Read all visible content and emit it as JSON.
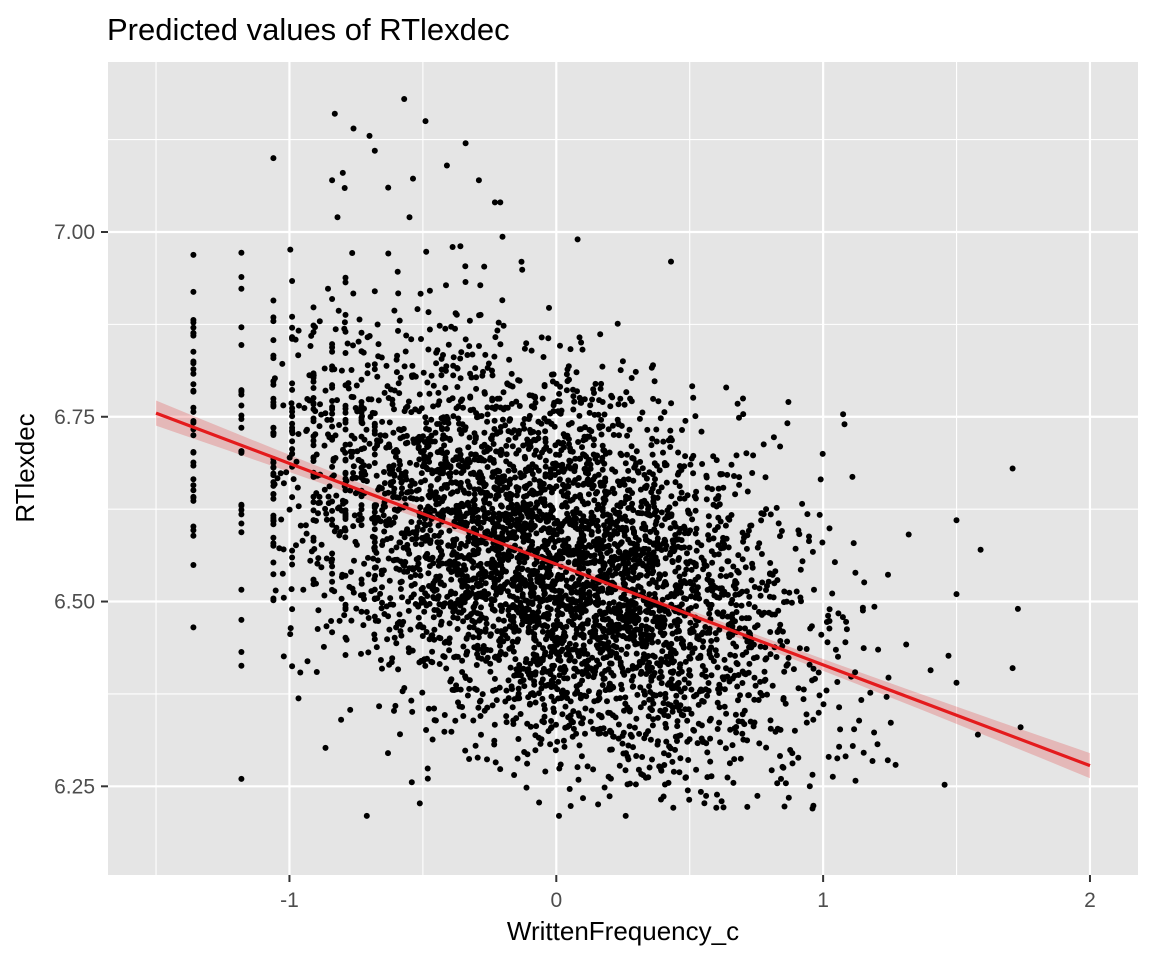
{
  "chart_data": {
    "type": "scatter",
    "title": "Predicted values of RTlexdec",
    "xlabel": "WrittenFrequency_c",
    "ylabel": "RTlexdec",
    "xlim": [
      -1.68,
      2.18
    ],
    "ylim": [
      6.13,
      7.23
    ],
    "x_ticks": [
      -1,
      0,
      1,
      2
    ],
    "x_tick_labels": [
      "-1",
      "0",
      "1",
      "2"
    ],
    "y_ticks": [
      6.25,
      6.5,
      6.75,
      7.0
    ],
    "y_tick_labels": [
      "6.25",
      "6.50",
      "6.75",
      "7.00"
    ],
    "grid": true,
    "legend": "none",
    "panel_background": "#e5e5e5",
    "point_color": "#000000",
    "fit_line": {
      "color": "#e41a1c",
      "ci_color": "#e41a1c",
      "x": [
        -1.5,
        2.0
      ],
      "y": [
        6.755,
        6.278
      ],
      "ci_halfwidth": [
        0.017,
        0.017
      ],
      "ci_mid_halfwidth": 0.006
    },
    "points": {
      "approx_count": 4560,
      "x_distribution": {
        "mean": 0.0,
        "sd": 0.45,
        "min": -1.36,
        "max": 1.73
      },
      "y_model": {
        "intercept": 6.55,
        "slope": -0.13,
        "residual_sd": 0.13
      },
      "y_range": [
        6.2,
        7.2
      ],
      "cluster_x": [
        -1.36,
        -1.18,
        -1.06,
        -0.99,
        -0.91,
        -0.84,
        -0.79,
        -0.73,
        -0.68
      ],
      "outliers": [
        {
          "x": -0.57,
          "y": 7.18
        },
        {
          "x": -0.83,
          "y": 7.16
        },
        {
          "x": -0.49,
          "y": 7.15
        },
        {
          "x": -0.76,
          "y": 7.14
        },
        {
          "x": -0.7,
          "y": 7.13
        },
        {
          "x": -0.34,
          "y": 7.12
        },
        {
          "x": -1.06,
          "y": 7.1
        },
        {
          "x": -0.68,
          "y": 7.11
        },
        {
          "x": -0.41,
          "y": 7.09
        },
        {
          "x": -0.8,
          "y": 7.08
        },
        {
          "x": -0.84,
          "y": 7.07
        },
        {
          "x": -0.29,
          "y": 7.07
        },
        {
          "x": -0.63,
          "y": 7.06
        },
        {
          "x": -0.21,
          "y": 7.04
        },
        {
          "x": -0.23,
          "y": 7.04
        },
        {
          "x": -0.82,
          "y": 7.02
        },
        {
          "x": -0.55,
          "y": 7.02
        },
        {
          "x": 0.08,
          "y": 6.99
        },
        {
          "x": 0.43,
          "y": 6.96
        },
        {
          "x": -0.71,
          "y": 6.21
        },
        {
          "x": 0.01,
          "y": 6.21
        },
        {
          "x": 0.26,
          "y": 6.21
        },
        {
          "x": -1.18,
          "y": 6.26
        },
        {
          "x": 1.71,
          "y": 6.68
        },
        {
          "x": 1.73,
          "y": 6.49
        },
        {
          "x": 1.71,
          "y": 6.41
        },
        {
          "x": 1.74,
          "y": 6.33
        },
        {
          "x": 1.59,
          "y": 6.57
        },
        {
          "x": 1.5,
          "y": 6.61
        },
        {
          "x": 1.5,
          "y": 6.51
        },
        {
          "x": 1.5,
          "y": 6.39
        },
        {
          "x": 1.58,
          "y": 6.32
        },
        {
          "x": 1.08,
          "y": 6.74
        },
        {
          "x": 0.87,
          "y": 6.77
        },
        {
          "x": 0.96,
          "y": 6.22
        },
        {
          "x": 0.95,
          "y": 6.25
        }
      ]
    }
  }
}
